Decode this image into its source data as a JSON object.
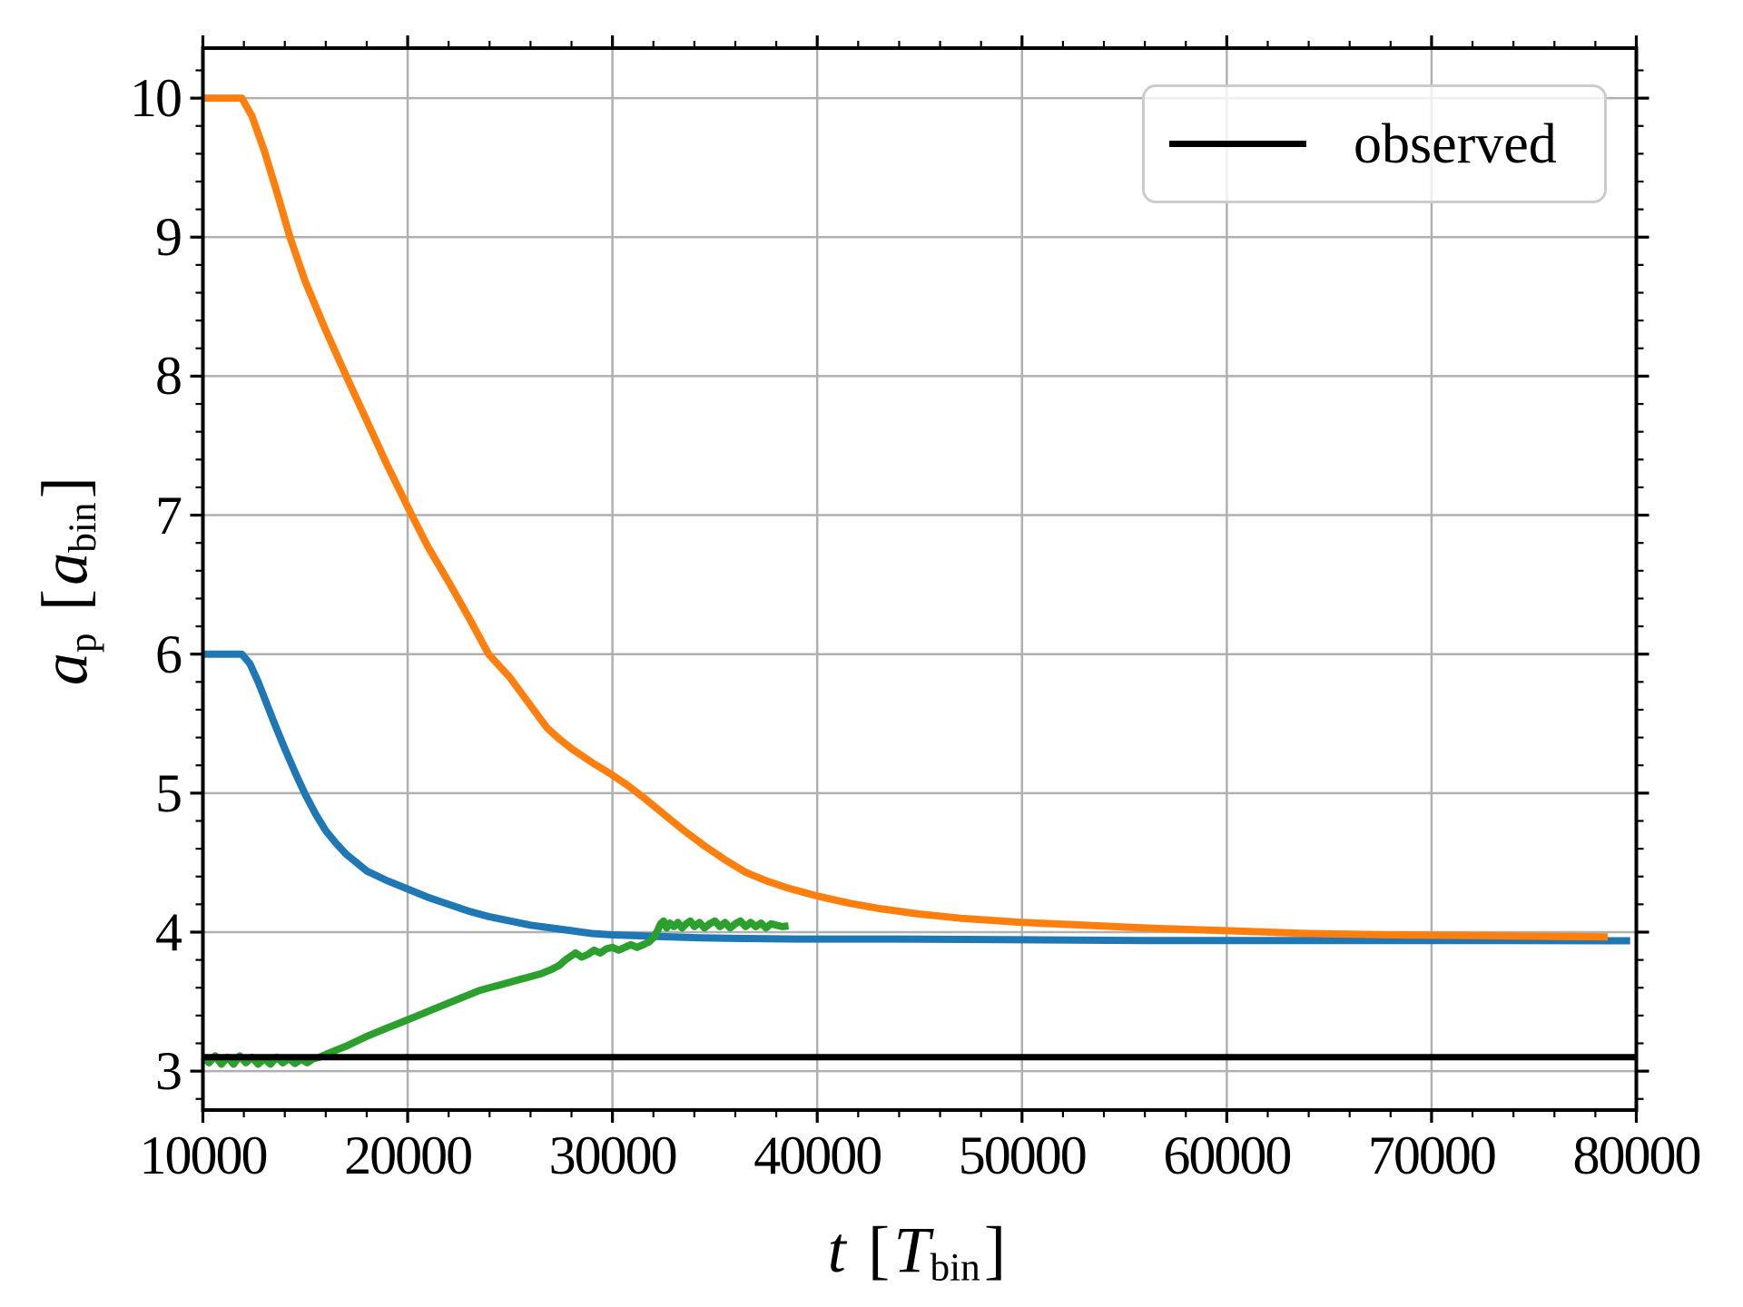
{
  "figure": {
    "background": "#ffffff",
    "grid_color": "#b0b0b0",
    "spine_color": "#000000",
    "tick_color": "#000000"
  },
  "legend": {
    "label": "observed",
    "line_color": "#000000",
    "position": "upper right"
  },
  "axes": {
    "xlabel": {
      "var": "t",
      "open": "[",
      "unit": "T",
      "sub": "bin",
      "close": "]",
      "text": "t [T_bin]"
    },
    "ylabel": {
      "var": "a",
      "varsub": "p",
      "open": "[",
      "unit": "a",
      "sub": "bin",
      "close": "]",
      "text": "a_p [a_bin]"
    }
  },
  "chart_data": {
    "type": "line",
    "title": "",
    "xlabel": "t [T_bin]",
    "ylabel": "a_p [a_bin]",
    "xlim": [
      10000,
      80000
    ],
    "ylim": [
      2.72,
      10.36
    ],
    "grid": true,
    "xticks": [
      10000,
      20000,
      30000,
      40000,
      50000,
      60000,
      70000,
      80000
    ],
    "xtick_labels": [
      "10000",
      "20000",
      "30000",
      "40000",
      "50000",
      "60000",
      "70000",
      "80000"
    ],
    "yticks": [
      3,
      4,
      5,
      6,
      7,
      8,
      9,
      10
    ],
    "ytick_labels": [
      "3",
      "4",
      "5",
      "6",
      "7",
      "8",
      "9",
      "10"
    ],
    "x_minor_step": 2000,
    "y_minor_step": 0.2,
    "legend": {
      "position": "upper right",
      "entries": [
        {
          "label": "observed",
          "color": "#000000"
        }
      ]
    },
    "series": [
      {
        "name": "series-blue",
        "color": "#1f77b4",
        "width": 8,
        "points": [
          [
            10000,
            6.0
          ],
          [
            11900,
            6.0
          ],
          [
            12300,
            5.93
          ],
          [
            12700,
            5.8
          ],
          [
            13100,
            5.65
          ],
          [
            13500,
            5.5
          ],
          [
            14000,
            5.32
          ],
          [
            14500,
            5.15
          ],
          [
            15000,
            4.99
          ],
          [
            15500,
            4.85
          ],
          [
            16000,
            4.73
          ],
          [
            16500,
            4.64
          ],
          [
            17000,
            4.56
          ],
          [
            17500,
            4.5
          ],
          [
            18000,
            4.44
          ],
          [
            19000,
            4.37
          ],
          [
            20000,
            4.31
          ],
          [
            21000,
            4.25
          ],
          [
            22000,
            4.2
          ],
          [
            23000,
            4.15
          ],
          [
            24000,
            4.11
          ],
          [
            25000,
            4.08
          ],
          [
            26000,
            4.05
          ],
          [
            27000,
            4.03
          ],
          [
            28000,
            4.01
          ],
          [
            29000,
            3.99
          ],
          [
            30000,
            3.98
          ],
          [
            31000,
            3.975
          ],
          [
            32000,
            3.97
          ],
          [
            34000,
            3.96
          ],
          [
            36000,
            3.955
          ],
          [
            39000,
            3.95
          ],
          [
            44000,
            3.95
          ],
          [
            50000,
            3.945
          ],
          [
            56000,
            3.94
          ],
          [
            62000,
            3.94
          ],
          [
            70000,
            3.94
          ],
          [
            79700,
            3.938
          ]
        ]
      },
      {
        "name": "series-orange",
        "color": "#ff7f0e",
        "width": 8,
        "points": [
          [
            10000,
            10.0
          ],
          [
            11900,
            10.0
          ],
          [
            12400,
            9.87
          ],
          [
            13000,
            9.62
          ],
          [
            13600,
            9.33
          ],
          [
            14250,
            9.0
          ],
          [
            15000,
            8.68
          ],
          [
            16000,
            8.33
          ],
          [
            17000,
            8.0
          ],
          [
            18000,
            7.68
          ],
          [
            19000,
            7.36
          ],
          [
            20200,
            7.0
          ],
          [
            21000,
            6.77
          ],
          [
            22000,
            6.52
          ],
          [
            23000,
            6.26
          ],
          [
            23950,
            6.0
          ],
          [
            25000,
            5.83
          ],
          [
            26000,
            5.63
          ],
          [
            26800,
            5.47
          ],
          [
            27400,
            5.39
          ],
          [
            28000,
            5.32
          ],
          [
            29000,
            5.22
          ],
          [
            30000,
            5.13
          ],
          [
            30700,
            5.06
          ],
          [
            31500,
            4.97
          ],
          [
            32500,
            4.85
          ],
          [
            33500,
            4.73
          ],
          [
            34500,
            4.62
          ],
          [
            35500,
            4.52
          ],
          [
            36500,
            4.43
          ],
          [
            37500,
            4.37
          ],
          [
            38500,
            4.32
          ],
          [
            40000,
            4.26
          ],
          [
            41500,
            4.21
          ],
          [
            43000,
            4.17
          ],
          [
            45000,
            4.13
          ],
          [
            47000,
            4.1
          ],
          [
            50000,
            4.07
          ],
          [
            53000,
            4.05
          ],
          [
            56000,
            4.03
          ],
          [
            60000,
            4.01
          ],
          [
            64000,
            3.99
          ],
          [
            68000,
            3.98
          ],
          [
            72000,
            3.975
          ],
          [
            78600,
            3.965
          ]
        ]
      },
      {
        "name": "series-green",
        "color": "#2ca02c",
        "width": 8,
        "points": [
          [
            10000,
            3.1
          ],
          [
            10300,
            3.06
          ],
          [
            10600,
            3.11
          ],
          [
            10900,
            3.05
          ],
          [
            11200,
            3.1
          ],
          [
            11500,
            3.05
          ],
          [
            11800,
            3.11
          ],
          [
            12100,
            3.06
          ],
          [
            12400,
            3.1
          ],
          [
            12700,
            3.05
          ],
          [
            13000,
            3.09
          ],
          [
            13300,
            3.05
          ],
          [
            13600,
            3.1
          ],
          [
            13900,
            3.06
          ],
          [
            14200,
            3.09
          ],
          [
            14500,
            3.055
          ],
          [
            14800,
            3.085
          ],
          [
            15100,
            3.06
          ],
          [
            15400,
            3.09
          ],
          [
            15700,
            3.1
          ],
          [
            16000,
            3.12
          ],
          [
            16500,
            3.15
          ],
          [
            17000,
            3.18
          ],
          [
            17500,
            3.215
          ],
          [
            18000,
            3.25
          ],
          [
            18500,
            3.28
          ],
          [
            19000,
            3.31
          ],
          [
            19500,
            3.34
          ],
          [
            20000,
            3.37
          ],
          [
            20500,
            3.4
          ],
          [
            21000,
            3.43
          ],
          [
            21500,
            3.46
          ],
          [
            22000,
            3.49
          ],
          [
            22500,
            3.52
          ],
          [
            23000,
            3.55
          ],
          [
            23500,
            3.58
          ],
          [
            24000,
            3.6
          ],
          [
            24500,
            3.62
          ],
          [
            25000,
            3.64
          ],
          [
            25500,
            3.66
          ],
          [
            26000,
            3.68
          ],
          [
            26500,
            3.7
          ],
          [
            27000,
            3.73
          ],
          [
            27400,
            3.76
          ],
          [
            27700,
            3.8
          ],
          [
            28000,
            3.83
          ],
          [
            28200,
            3.85
          ],
          [
            28500,
            3.82
          ],
          [
            28800,
            3.84
          ],
          [
            29100,
            3.87
          ],
          [
            29400,
            3.85
          ],
          [
            29700,
            3.88
          ],
          [
            30000,
            3.89
          ],
          [
            30300,
            3.87
          ],
          [
            30600,
            3.89
          ],
          [
            30900,
            3.91
          ],
          [
            31200,
            3.89
          ],
          [
            31500,
            3.91
          ],
          [
            31800,
            3.93
          ],
          [
            32000,
            3.96
          ],
          [
            32200,
            4.01
          ],
          [
            32350,
            4.06
          ],
          [
            32500,
            4.08
          ],
          [
            32650,
            4.03
          ],
          [
            32800,
            4.065
          ],
          [
            33000,
            4.04
          ],
          [
            33200,
            4.07
          ],
          [
            33400,
            4.03
          ],
          [
            33600,
            4.06
          ],
          [
            33800,
            4.08
          ],
          [
            34000,
            4.04
          ],
          [
            34250,
            4.07
          ],
          [
            34500,
            4.03
          ],
          [
            34750,
            4.06
          ],
          [
            35000,
            4.08
          ],
          [
            35250,
            4.04
          ],
          [
            35500,
            4.07
          ],
          [
            35750,
            4.03
          ],
          [
            36000,
            4.06
          ],
          [
            36250,
            4.08
          ],
          [
            36500,
            4.04
          ],
          [
            36750,
            4.07
          ],
          [
            37000,
            4.04
          ],
          [
            37250,
            4.065
          ],
          [
            37500,
            4.03
          ],
          [
            37750,
            4.06
          ],
          [
            38000,
            4.05
          ],
          [
            38300,
            4.04
          ],
          [
            38600,
            4.045
          ]
        ]
      },
      {
        "name": "series-observed",
        "color": "#000000",
        "width": 7,
        "points": [
          [
            10000,
            3.1
          ],
          [
            80000,
            3.1
          ]
        ]
      }
    ]
  }
}
